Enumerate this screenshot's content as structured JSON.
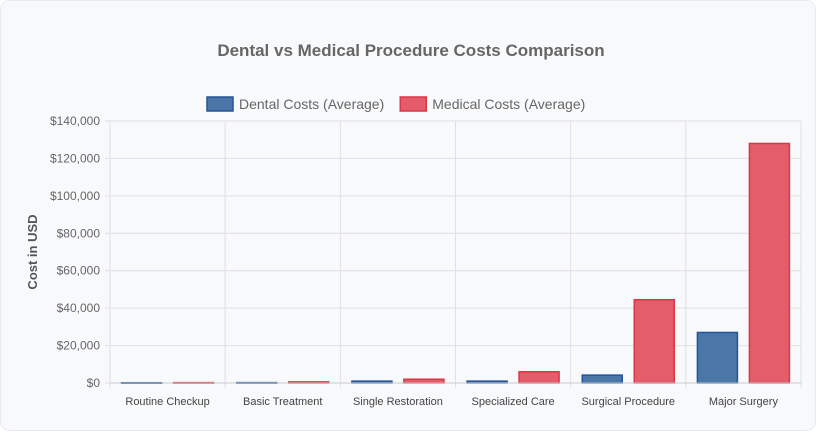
{
  "chart_data": {
    "type": "bar",
    "title": "Dental vs Medical Procedure Costs Comparison",
    "xlabel": "",
    "ylabel": "Cost in USD",
    "ylim": [
      0,
      140000
    ],
    "yticks": [
      0,
      20000,
      40000,
      60000,
      80000,
      100000,
      120000,
      140000
    ],
    "grid": true,
    "legend_position": "top",
    "categories": [
      "Routine Checkup",
      "Basic Treatment",
      "Single Restoration",
      "Specialized Care",
      "Surgical Procedure",
      "Major Surgery"
    ],
    "series": [
      {
        "name": "Dental Costs (Average)",
        "values": [
          150,
          200,
          1000,
          1000,
          4200,
          27000
        ],
        "color": "#4a76a8",
        "border": "#22559a"
      },
      {
        "name": "Medical Costs (Average)",
        "values": [
          200,
          600,
          2000,
          6000,
          44500,
          128000
        ],
        "color": "#e35d6a",
        "border": "#dc3545"
      }
    ]
  }
}
